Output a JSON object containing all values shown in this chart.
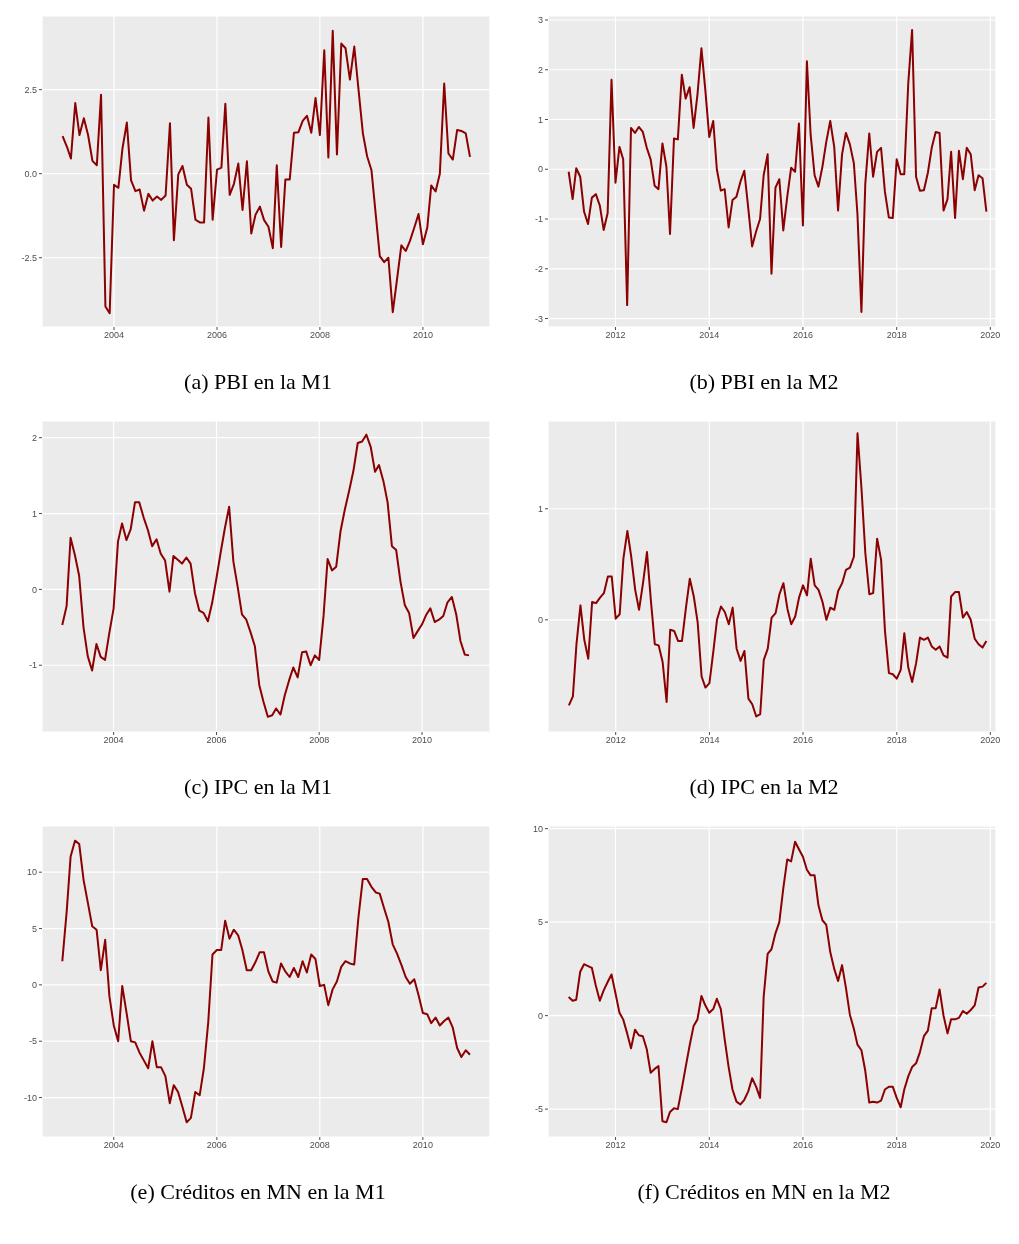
{
  "chart_data": [
    {
      "type": "line",
      "title": "(a) PBI en la M1",
      "xlim": [
        "2002-08-08",
        "2011-04-22"
      ],
      "xticks": [
        "2004",
        "2006",
        "2008",
        "2010"
      ],
      "ylim": [
        -4.56,
        4.69
      ],
      "yticks": [
        {
          "value": -2.5,
          "label": "-2.5"
        },
        {
          "value": 0,
          "label": "0.0"
        },
        {
          "value": 2.5,
          "label": "2.5"
        }
      ],
      "grid": true,
      "x": [
        "2003-01",
        "2003-02",
        "2003-03",
        "2003-04",
        "2003-05",
        "2003-06",
        "2003-07",
        "2003-08",
        "2003-09",
        "2003-10",
        "2003-11",
        "2003-12",
        "2004-01",
        "2004-02",
        "2004-03",
        "2004-04",
        "2004-05",
        "2004-06",
        "2004-07",
        "2004-08",
        "2004-09",
        "2004-10",
        "2004-11",
        "2004-12",
        "2005-01",
        "2005-02",
        "2005-03",
        "2005-04",
        "2005-05",
        "2005-06",
        "2005-07",
        "2005-08",
        "2005-09",
        "2005-10",
        "2005-11",
        "2005-12",
        "2006-01",
        "2006-02",
        "2006-03",
        "2006-04",
        "2006-05",
        "2006-06",
        "2006-07",
        "2006-08",
        "2006-09",
        "2006-10",
        "2006-11",
        "2006-12",
        "2007-01",
        "2007-02",
        "2007-03",
        "2007-04",
        "2007-05",
        "2007-06",
        "2007-07",
        "2007-08",
        "2007-09",
        "2007-10",
        "2007-11",
        "2007-12",
        "2008-01",
        "2008-02",
        "2008-03",
        "2008-04",
        "2008-05",
        "2008-06",
        "2008-07",
        "2008-08",
        "2008-09",
        "2008-10",
        "2008-11",
        "2008-12",
        "2009-01",
        "2009-02",
        "2009-03",
        "2009-04",
        "2009-05",
        "2009-06",
        "2009-07",
        "2009-08",
        "2009-09",
        "2009-10",
        "2009-11",
        "2009-12",
        "2010-01",
        "2010-02",
        "2010-03",
        "2010-04",
        "2010-05",
        "2010-06",
        "2010-07",
        "2010-08",
        "2010-09",
        "2010-10",
        "2010-11",
        "2010-12"
      ],
      "series": [
        {
          "color": "#8b0000",
          "values": [
            1.12,
            0.8,
            0.45,
            2.1,
            1.15,
            1.65,
            1.15,
            0.38,
            0.25,
            2.35,
            -3.95,
            -4.15,
            -0.33,
            -0.42,
            0.75,
            1.52,
            -0.2,
            -0.52,
            -0.47,
            -1.1,
            -0.6,
            -0.8,
            -0.68,
            -0.78,
            -0.65,
            1.5,
            -1.98,
            -0.02,
            0.23,
            -0.33,
            -0.45,
            -1.37,
            -1.45,
            -1.45,
            1.67,
            -1.37,
            0.12,
            0.18,
            2.08,
            -0.63,
            -0.3,
            0.3,
            -1.08,
            0.37,
            -1.78,
            -1.22,
            -0.98,
            -1.38,
            -1.58,
            -2.22,
            0.25,
            -2.18,
            -0.17,
            -0.17,
            1.22,
            1.23,
            1.57,
            1.72,
            1.22,
            2.25,
            1.15,
            3.67,
            0.48,
            4.25,
            0.57,
            3.87,
            3.73,
            2.8,
            3.78,
            2.5,
            1.2,
            0.52,
            0.1,
            -1.25,
            -2.45,
            -2.63,
            -2.5,
            -4.12,
            -3.15,
            -2.13,
            -2.3,
            -2.0,
            -1.6,
            -1.2,
            -2.1,
            -1.6,
            -0.35,
            -0.53,
            0.0,
            2.68,
            0.6,
            0.42,
            1.3,
            1.27,
            1.2,
            0.5
          ]
        }
      ]
    },
    {
      "type": "line",
      "title": "(b) PBI en la M2",
      "xlim": [
        "2010-07-24",
        "2020-02-14"
      ],
      "xticks": [
        "2012",
        "2014",
        "2016",
        "2018",
        "2020"
      ],
      "ylim": [
        -3.17,
        3.08
      ],
      "yticks": [
        -3,
        -2,
        -1,
        0,
        1,
        2,
        3
      ],
      "grid": true,
      "x": [
        "2011-01",
        "2011-02",
        "2011-03",
        "2011-04",
        "2011-05",
        "2011-06",
        "2011-07",
        "2011-08",
        "2011-09",
        "2011-10",
        "2011-11",
        "2011-12",
        "2012-01",
        "2012-02",
        "2012-03",
        "2012-04",
        "2012-05",
        "2012-06",
        "2012-07",
        "2012-08",
        "2012-09",
        "2012-10",
        "2012-11",
        "2012-12",
        "2013-01",
        "2013-02",
        "2013-03",
        "2013-04",
        "2013-05",
        "2013-06",
        "2013-07",
        "2013-08",
        "2013-09",
        "2013-10",
        "2013-11",
        "2013-12",
        "2014-01",
        "2014-02",
        "2014-03",
        "2014-04",
        "2014-05",
        "2014-06",
        "2014-07",
        "2014-08",
        "2014-09",
        "2014-10",
        "2014-11",
        "2014-12",
        "2015-01",
        "2015-02",
        "2015-03",
        "2015-04",
        "2015-05",
        "2015-06",
        "2015-07",
        "2015-08",
        "2015-09",
        "2015-10",
        "2015-11",
        "2015-12",
        "2016-01",
        "2016-02",
        "2016-03",
        "2016-04",
        "2016-05",
        "2016-06",
        "2016-07",
        "2016-08",
        "2016-09",
        "2016-10",
        "2016-11",
        "2016-12",
        "2017-01",
        "2017-02",
        "2017-03",
        "2017-04",
        "2017-05",
        "2017-06",
        "2017-07",
        "2017-08",
        "2017-09",
        "2017-10",
        "2017-11",
        "2017-12",
        "2018-01",
        "2018-02",
        "2018-03",
        "2018-04",
        "2018-05",
        "2018-06",
        "2018-07",
        "2018-08",
        "2018-09",
        "2018-10",
        "2018-11",
        "2018-12",
        "2019-01",
        "2019-02",
        "2019-03",
        "2019-04",
        "2019-05",
        "2019-06",
        "2019-07",
        "2019-08",
        "2019-09",
        "2019-10",
        "2019-11",
        "2019-12"
      ],
      "series": [
        {
          "color": "#8b0000",
          "values": [
            -0.05,
            -0.6,
            0.02,
            -0.15,
            -0.85,
            -1.1,
            -0.57,
            -0.5,
            -0.73,
            -1.22,
            -0.88,
            1.8,
            -0.27,
            0.45,
            0.2,
            -2.73,
            0.83,
            0.73,
            0.85,
            0.75,
            0.43,
            0.2,
            -0.33,
            -0.4,
            0.52,
            0.05,
            -1.3,
            0.62,
            0.6,
            1.9,
            1.42,
            1.65,
            0.83,
            1.5,
            2.43,
            1.6,
            0.65,
            0.97,
            0.0,
            -0.43,
            -0.4,
            -1.17,
            -0.62,
            -0.55,
            -0.25,
            -0.03,
            -0.78,
            -1.55,
            -1.25,
            -1.0,
            -0.12,
            0.3,
            -2.1,
            -0.37,
            -0.2,
            -1.23,
            -0.55,
            0.03,
            -0.05,
            0.92,
            -1.13,
            2.17,
            0.7,
            -0.12,
            -0.35,
            0.05,
            0.55,
            0.97,
            0.45,
            -0.83,
            0.3,
            0.73,
            0.5,
            0.12,
            -0.9,
            -2.87,
            -0.3,
            0.72,
            -0.15,
            0.35,
            0.43,
            -0.45,
            -0.97,
            -0.98,
            0.2,
            -0.1,
            -0.1,
            1.72,
            2.8,
            -0.15,
            -0.43,
            -0.42,
            -0.07,
            0.43,
            0.75,
            0.73,
            -0.83,
            -0.6,
            0.35,
            -0.98,
            0.37,
            -0.2,
            0.43,
            0.3,
            -0.42,
            -0.12,
            -0.18,
            -0.85
          ]
        }
      ]
    },
    {
      "type": "line",
      "title": "(c) IPC en la M1",
      "xlim": [
        "2002-08-10",
        "2011-04-29"
      ],
      "xticks": [
        "2004",
        "2006",
        "2008",
        "2010"
      ],
      "ylim": [
        -1.88,
        2.22
      ],
      "yticks": [
        -1,
        0,
        1,
        2
      ],
      "grid": true,
      "x": [
        "2003-01",
        "2003-02",
        "2003-03",
        "2003-04",
        "2003-05",
        "2003-06",
        "2003-07",
        "2003-08",
        "2003-09",
        "2003-10",
        "2003-11",
        "2003-12",
        "2004-01",
        "2004-02",
        "2004-03",
        "2004-04",
        "2004-05",
        "2004-06",
        "2004-07",
        "2004-08",
        "2004-09",
        "2004-10",
        "2004-11",
        "2004-12",
        "2005-01",
        "2005-02",
        "2005-03",
        "2005-04",
        "2005-05",
        "2005-06",
        "2005-07",
        "2005-08",
        "2005-09",
        "2005-10",
        "2005-11",
        "2005-12",
        "2006-01",
        "2006-02",
        "2006-03",
        "2006-04",
        "2006-05",
        "2006-06",
        "2006-07",
        "2006-08",
        "2006-09",
        "2006-10",
        "2006-11",
        "2006-12",
        "2007-01",
        "2007-02",
        "2007-03",
        "2007-04",
        "2007-05",
        "2007-06",
        "2007-07",
        "2007-08",
        "2007-09",
        "2007-10",
        "2007-11",
        "2007-12",
        "2008-01",
        "2008-02",
        "2008-03",
        "2008-04",
        "2008-05",
        "2008-06",
        "2008-07",
        "2008-08",
        "2008-09",
        "2008-10",
        "2008-11",
        "2008-12",
        "2009-01",
        "2009-02",
        "2009-03",
        "2009-04",
        "2009-05",
        "2009-06",
        "2009-07",
        "2009-08",
        "2009-09",
        "2009-10",
        "2009-11",
        "2009-12",
        "2010-01",
        "2010-02",
        "2010-03",
        "2010-04",
        "2010-05",
        "2010-06",
        "2010-07",
        "2010-08",
        "2010-09",
        "2010-10",
        "2010-11",
        "2010-12"
      ],
      "series": [
        {
          "color": "#8b0000",
          "values": [
            -0.47,
            -0.22,
            0.68,
            0.45,
            0.18,
            -0.5,
            -0.88,
            -1.07,
            -0.72,
            -0.89,
            -0.93,
            -0.58,
            -0.25,
            0.63,
            0.87,
            0.65,
            0.79,
            1.15,
            1.15,
            0.95,
            0.78,
            0.57,
            0.66,
            0.47,
            0.38,
            -0.03,
            0.44,
            0.39,
            0.34,
            0.42,
            0.34,
            -0.05,
            -0.28,
            -0.31,
            -0.42,
            -0.18,
            0.15,
            0.5,
            0.8,
            1.09,
            0.37,
            0.03,
            -0.33,
            -0.4,
            -0.57,
            -0.75,
            -1.26,
            -1.48,
            -1.68,
            -1.66,
            -1.57,
            -1.65,
            -1.4,
            -1.2,
            -1.03,
            -1.16,
            -0.83,
            -0.82,
            -1.0,
            -0.87,
            -0.93,
            -0.35,
            0.4,
            0.25,
            0.3,
            0.77,
            1.05,
            1.3,
            1.57,
            1.93,
            1.95,
            2.04,
            1.88,
            1.55,
            1.64,
            1.43,
            1.15,
            0.57,
            0.52,
            0.1,
            -0.21,
            -0.31,
            -0.64,
            -0.55,
            -0.46,
            -0.33,
            -0.25,
            -0.43,
            -0.4,
            -0.35,
            -0.17,
            -0.1,
            -0.33,
            -0.68,
            -0.86,
            -0.87
          ]
        }
      ]
    },
    {
      "type": "line",
      "title": "(d) IPC en la M2",
      "xlim": [
        "2010-07-22",
        "2020-02-14"
      ],
      "xticks": [
        "2012",
        "2014",
        "2016",
        "2018",
        "2020"
      ],
      "ylim": [
        -1.01,
        1.79
      ],
      "yticks": [
        0,
        1
      ],
      "grid": true,
      "x": [
        "2011-01",
        "2011-02",
        "2011-03",
        "2011-04",
        "2011-05",
        "2011-06",
        "2011-07",
        "2011-08",
        "2011-09",
        "2011-10",
        "2011-11",
        "2011-12",
        "2012-01",
        "2012-02",
        "2012-03",
        "2012-04",
        "2012-05",
        "2012-06",
        "2012-07",
        "2012-08",
        "2012-09",
        "2012-10",
        "2012-11",
        "2012-12",
        "2013-01",
        "2013-02",
        "2013-03",
        "2013-04",
        "2013-05",
        "2013-06",
        "2013-07",
        "2013-08",
        "2013-09",
        "2013-10",
        "2013-11",
        "2013-12",
        "2014-01",
        "2014-02",
        "2014-03",
        "2014-04",
        "2014-05",
        "2014-06",
        "2014-07",
        "2014-08",
        "2014-09",
        "2014-10",
        "2014-11",
        "2014-12",
        "2015-01",
        "2015-02",
        "2015-03",
        "2015-04",
        "2015-05",
        "2015-06",
        "2015-07",
        "2015-08",
        "2015-09",
        "2015-10",
        "2015-11",
        "2015-12",
        "2016-01",
        "2016-02",
        "2016-03",
        "2016-04",
        "2016-05",
        "2016-06",
        "2016-07",
        "2016-08",
        "2016-09",
        "2016-10",
        "2016-11",
        "2016-12",
        "2017-01",
        "2017-02",
        "2017-03",
        "2017-04",
        "2017-05",
        "2017-06",
        "2017-07",
        "2017-08",
        "2017-09",
        "2017-10",
        "2017-11",
        "2017-12",
        "2018-01",
        "2018-02",
        "2018-03",
        "2018-04",
        "2018-05",
        "2018-06",
        "2018-07",
        "2018-08",
        "2018-09",
        "2018-10",
        "2018-11",
        "2018-12",
        "2019-01",
        "2019-02",
        "2019-03",
        "2019-04",
        "2019-05",
        "2019-06",
        "2019-07",
        "2019-08",
        "2019-09",
        "2019-10",
        "2019-11",
        "2019-12"
      ],
      "series": [
        {
          "color": "#8b0000",
          "values": [
            -0.77,
            -0.69,
            -0.22,
            0.13,
            -0.18,
            -0.35,
            0.16,
            0.15,
            0.2,
            0.24,
            0.39,
            0.39,
            0.01,
            0.05,
            0.55,
            0.8,
            0.57,
            0.27,
            0.09,
            0.33,
            0.61,
            0.18,
            -0.22,
            -0.23,
            -0.38,
            -0.74,
            -0.09,
            -0.1,
            -0.19,
            -0.19,
            0.1,
            0.37,
            0.21,
            -0.02,
            -0.51,
            -0.61,
            -0.57,
            -0.28,
            0.0,
            0.12,
            0.07,
            -0.04,
            0.11,
            -0.26,
            -0.37,
            -0.28,
            -0.71,
            -0.76,
            -0.87,
            -0.85,
            -0.36,
            -0.26,
            0.02,
            0.06,
            0.23,
            0.33,
            0.1,
            -0.04,
            0.03,
            0.2,
            0.31,
            0.22,
            0.55,
            0.31,
            0.27,
            0.16,
            0.0,
            0.11,
            0.09,
            0.26,
            0.33,
            0.45,
            0.47,
            0.57,
            1.68,
            1.18,
            0.6,
            0.23,
            0.24,
            0.73,
            0.54,
            -0.1,
            -0.48,
            -0.49,
            -0.53,
            -0.45,
            -0.12,
            -0.43,
            -0.56,
            -0.39,
            -0.16,
            -0.18,
            -0.16,
            -0.24,
            -0.27,
            -0.24,
            -0.32,
            -0.34,
            0.21,
            0.25,
            0.25,
            0.02,
            0.07,
            0.0,
            -0.17,
            -0.22,
            -0.25,
            -0.19
          ]
        }
      ]
    },
    {
      "type": "line",
      "title": "(e) Créditos en MN en la M1",
      "xlim": [
        "2002-08-10",
        "2011-04-22"
      ],
      "xticks": [
        "2004",
        "2006",
        "2008",
        "2010"
      ],
      "ylim": [
        -13.5,
        14.1
      ],
      "yticks": [
        -10,
        -5,
        0,
        5,
        10
      ],
      "grid": true,
      "x": [
        "2003-01",
        "2003-02",
        "2003-03",
        "2003-04",
        "2003-05",
        "2003-06",
        "2003-07",
        "2003-08",
        "2003-09",
        "2003-10",
        "2003-11",
        "2003-12",
        "2004-01",
        "2004-02",
        "2004-03",
        "2004-04",
        "2004-05",
        "2004-06",
        "2004-07",
        "2004-08",
        "2004-09",
        "2004-10",
        "2004-11",
        "2004-12",
        "2005-01",
        "2005-02",
        "2005-03",
        "2005-04",
        "2005-05",
        "2005-06",
        "2005-07",
        "2005-08",
        "2005-09",
        "2005-10",
        "2005-11",
        "2005-12",
        "2006-01",
        "2006-02",
        "2006-03",
        "2006-04",
        "2006-05",
        "2006-06",
        "2006-07",
        "2006-08",
        "2006-09",
        "2006-10",
        "2006-11",
        "2006-12",
        "2007-01",
        "2007-02",
        "2007-03",
        "2007-04",
        "2007-05",
        "2007-06",
        "2007-07",
        "2007-08",
        "2007-09",
        "2007-10",
        "2007-11",
        "2007-12",
        "2008-01",
        "2008-02",
        "2008-03",
        "2008-04",
        "2008-05",
        "2008-06",
        "2008-07",
        "2008-08",
        "2008-09",
        "2008-10",
        "2008-11",
        "2008-12",
        "2009-01",
        "2009-02",
        "2009-03",
        "2009-04",
        "2009-05",
        "2009-06",
        "2009-07",
        "2009-08",
        "2009-09",
        "2009-10",
        "2009-11",
        "2009-12",
        "2010-01",
        "2010-02",
        "2010-03",
        "2010-04",
        "2010-05",
        "2010-06",
        "2010-07",
        "2010-08",
        "2010-09",
        "2010-10",
        "2010-11",
        "2010-12"
      ],
      "series": [
        {
          "color": "#8b0000",
          "values": [
            2.1,
            6.5,
            11.4,
            12.8,
            12.5,
            9.3,
            7.3,
            5.2,
            4.9,
            1.3,
            4.0,
            -1.0,
            -3.6,
            -5.0,
            -0.1,
            -2.5,
            -5.0,
            -5.1,
            -6.0,
            -6.7,
            -7.4,
            -5.0,
            -7.3,
            -7.3,
            -8.1,
            -10.5,
            -8.9,
            -9.5,
            -10.8,
            -12.2,
            -11.8,
            -9.5,
            -9.8,
            -7.4,
            -3.3,
            2.7,
            3.1,
            3.1,
            5.7,
            4.1,
            4.9,
            4.4,
            3.1,
            1.3,
            1.3,
            2.0,
            2.9,
            2.9,
            1.2,
            0.3,
            0.2,
            1.9,
            1.2,
            0.7,
            1.5,
            0.7,
            2.1,
            1.1,
            2.7,
            2.3,
            -0.1,
            0.0,
            -1.8,
            -0.4,
            0.3,
            1.6,
            2.1,
            1.9,
            1.8,
            6.0,
            9.4,
            9.4,
            8.7,
            8.2,
            8.1,
            6.8,
            5.6,
            3.6,
            2.8,
            1.8,
            0.7,
            0.1,
            0.5,
            -0.9,
            -2.5,
            -2.6,
            -3.4,
            -2.9,
            -3.6,
            -3.2,
            -2.9,
            -3.8,
            -5.6,
            -6.4,
            -5.8,
            -6.2
          ]
        }
      ]
    },
    {
      "type": "line",
      "title": "(f) Créditos en MN en la M2",
      "xlim": [
        "2010-07-24",
        "2020-02-14"
      ],
      "xticks": [
        "2012",
        "2014",
        "2016",
        "2018",
        "2020"
      ],
      "ylim": [
        -6.49,
        10.14
      ],
      "yticks": [
        -5,
        0,
        5,
        10
      ],
      "grid": true,
      "x": [
        "2011-01",
        "2011-02",
        "2011-03",
        "2011-04",
        "2011-05",
        "2011-06",
        "2011-07",
        "2011-08",
        "2011-09",
        "2011-10",
        "2011-11",
        "2011-12",
        "2012-01",
        "2012-02",
        "2012-03",
        "2012-04",
        "2012-05",
        "2012-06",
        "2012-07",
        "2012-08",
        "2012-09",
        "2012-10",
        "2012-11",
        "2012-12",
        "2013-01",
        "2013-02",
        "2013-03",
        "2013-04",
        "2013-05",
        "2013-06",
        "2013-07",
        "2013-08",
        "2013-09",
        "2013-10",
        "2013-11",
        "2013-12",
        "2014-01",
        "2014-02",
        "2014-03",
        "2014-04",
        "2014-05",
        "2014-06",
        "2014-07",
        "2014-08",
        "2014-09",
        "2014-10",
        "2014-11",
        "2014-12",
        "2015-01",
        "2015-02",
        "2015-03",
        "2015-04",
        "2015-05",
        "2015-06",
        "2015-07",
        "2015-08",
        "2015-09",
        "2015-10",
        "2015-11",
        "2015-12",
        "2016-01",
        "2016-02",
        "2016-03",
        "2016-04",
        "2016-05",
        "2016-06",
        "2016-07",
        "2016-08",
        "2016-09",
        "2016-10",
        "2016-11",
        "2016-12",
        "2017-01",
        "2017-02",
        "2017-03",
        "2017-04",
        "2017-05",
        "2017-06",
        "2017-07",
        "2017-08",
        "2017-09",
        "2017-10",
        "2017-11",
        "2017-12",
        "2018-01",
        "2018-02",
        "2018-03",
        "2018-04",
        "2018-05",
        "2018-06",
        "2018-07",
        "2018-08",
        "2018-09",
        "2018-10",
        "2018-11",
        "2018-12",
        "2019-01",
        "2019-02",
        "2019-03",
        "2019-04",
        "2019-05",
        "2019-06",
        "2019-07",
        "2019-08",
        "2019-09",
        "2019-10",
        "2019-11",
        "2019-12"
      ],
      "series": [
        {
          "color": "#8b0000",
          "values": [
            1.0,
            0.8,
            0.85,
            2.35,
            2.75,
            2.65,
            2.55,
            1.6,
            0.8,
            1.35,
            1.8,
            2.2,
            1.2,
            0.15,
            -0.2,
            -0.95,
            -1.75,
            -0.75,
            -1.05,
            -1.1,
            -1.8,
            -3.05,
            -2.85,
            -2.7,
            -5.65,
            -5.7,
            -5.15,
            -4.95,
            -5.0,
            -3.9,
            -2.75,
            -1.6,
            -0.55,
            -0.2,
            1.05,
            0.55,
            0.15,
            0.35,
            0.9,
            0.35,
            -1.25,
            -2.75,
            -3.95,
            -4.6,
            -4.75,
            -4.5,
            -4.05,
            -3.35,
            -3.8,
            -4.4,
            1.0,
            3.3,
            3.55,
            4.4,
            5.0,
            6.8,
            8.35,
            8.25,
            9.3,
            8.9,
            8.5,
            7.8,
            7.5,
            7.5,
            5.9,
            5.1,
            4.85,
            3.4,
            2.5,
            1.85,
            2.7,
            1.5,
            0.05,
            -0.7,
            -1.55,
            -1.85,
            -2.95,
            -4.65,
            -4.6,
            -4.65,
            -4.55,
            -3.95,
            -3.8,
            -3.8,
            -4.4,
            -4.9,
            -3.95,
            -3.25,
            -2.75,
            -2.55,
            -1.95,
            -1.1,
            -0.8,
            0.4,
            0.4,
            1.4,
            0.0,
            -0.95,
            -0.2,
            -0.2,
            -0.12,
            0.25,
            0.1,
            0.3,
            0.55,
            1.5,
            1.55,
            1.75
          ]
        }
      ]
    }
  ]
}
